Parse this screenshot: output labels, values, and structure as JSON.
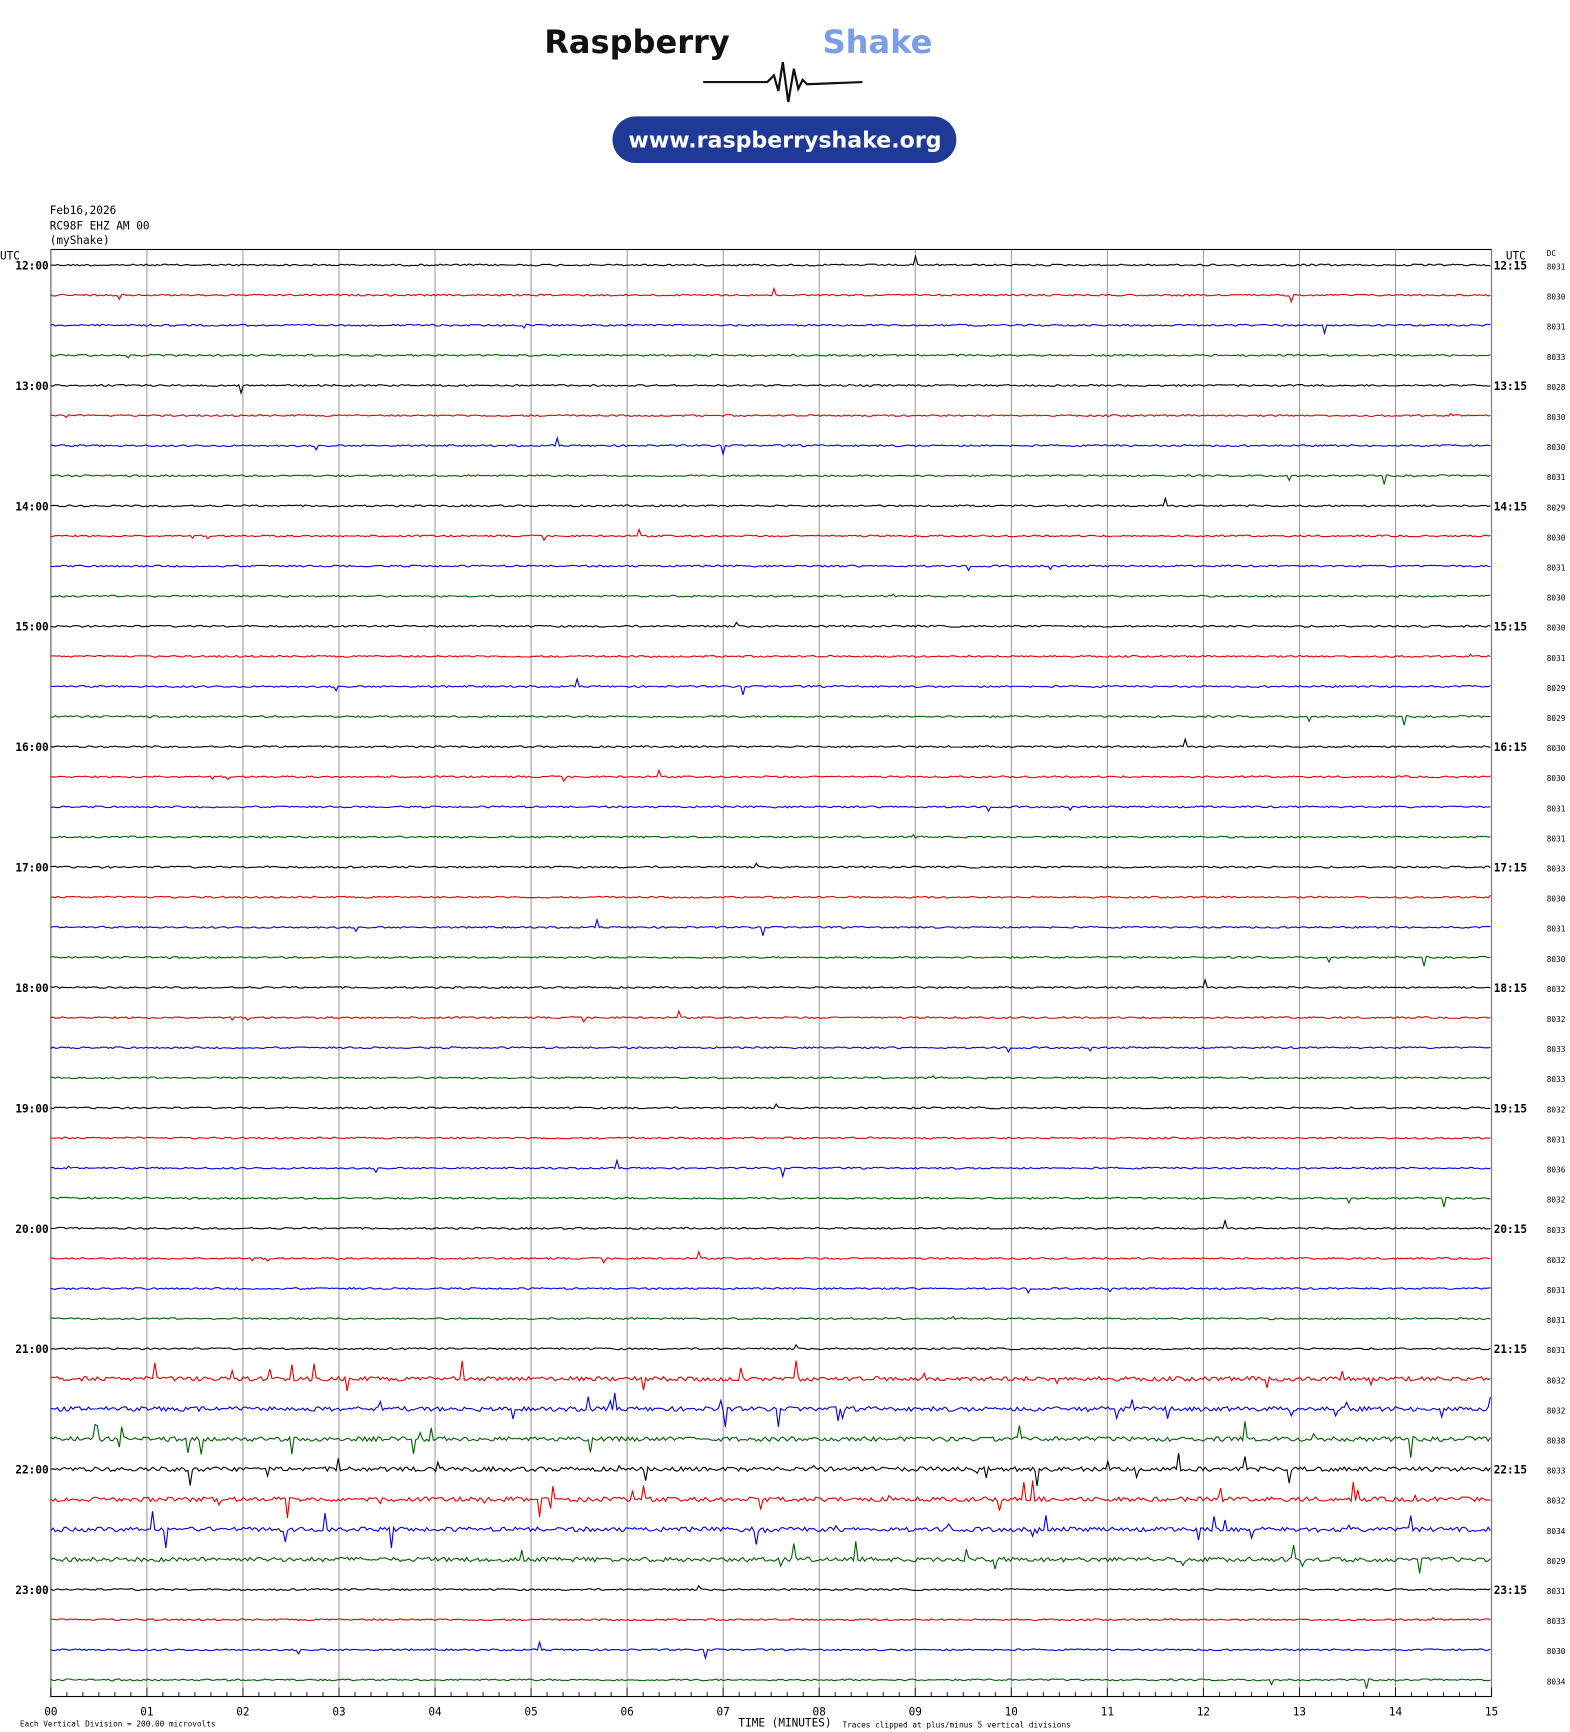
{
  "logo": {
    "name_dark": "Raspberry",
    "name_light": "Shake",
    "url": "www.raspberryshake.org"
  },
  "header": {
    "date": "Feb16,2026",
    "station": "RC98F EHZ AM 00",
    "source": "(myShake)"
  },
  "axis": {
    "left_unit": "UTC",
    "right_unit": "UTC",
    "dc_label": "DC",
    "x_ticks": [
      "00",
      "01",
      "02",
      "03",
      "04",
      "05",
      "06",
      "07",
      "08",
      "09",
      "10",
      "11",
      "12",
      "13",
      "14",
      "15"
    ],
    "x_title": "TIME (MINUTES)"
  },
  "footer": {
    "scale_note": "Each Vertical Division =  200.00 microvolts",
    "clip_note": "Traces clipped at plus/minus 5 vertical divisions"
  },
  "trace_colors": [
    "#000000",
    "#e00000",
    "#0000e0",
    "#006000"
  ],
  "hours_left": [
    "12:00",
    "13:00",
    "14:00",
    "15:00",
    "16:00",
    "17:00",
    "18:00",
    "19:00",
    "20:00",
    "21:00",
    "22:00",
    "23:00"
  ],
  "hours_right": [
    "12:15",
    "13:15",
    "14:15",
    "15:15",
    "16:15",
    "17:15",
    "18:15",
    "19:15",
    "20:15",
    "21:15",
    "22:15",
    "23:15"
  ],
  "dc": [
    "8031",
    "8030",
    "8031",
    "8033",
    "8028",
    "8030",
    "8030",
    "8031",
    "8029",
    "8030",
    "8031",
    "8030",
    "8030",
    "8031",
    "8029",
    "8029",
    "8030",
    "8030",
    "8031",
    "8031",
    "8033",
    "8030",
    "8031",
    "8030",
    "8032",
    "8032",
    "8033",
    "8033",
    "8032",
    "8031",
    "8036",
    "8032",
    "8033",
    "8032",
    "8031",
    "8031",
    "8031",
    "8032",
    "8032",
    "8038",
    "8033",
    "8032",
    "8034",
    "8029",
    "8031",
    "8033",
    "8030",
    "8034"
  ]
}
